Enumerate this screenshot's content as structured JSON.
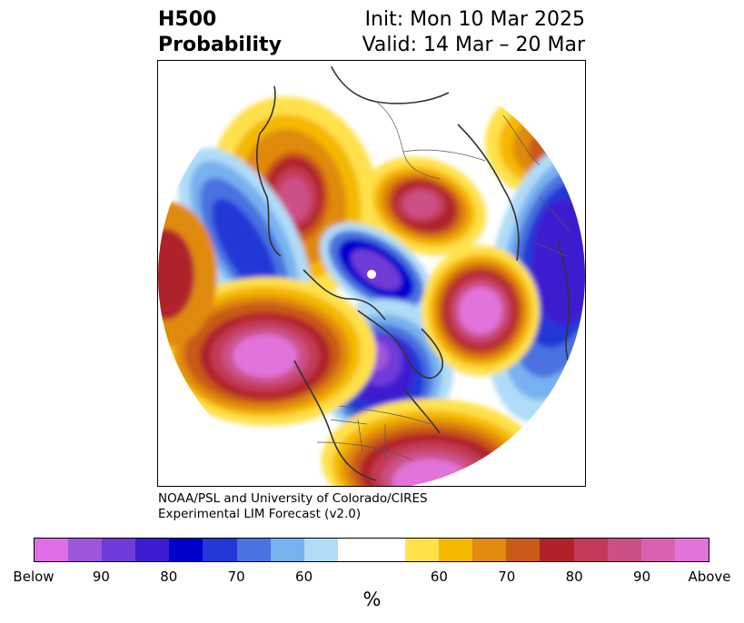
{
  "header": {
    "title_line1": "H500",
    "title_line2": "Probability",
    "init": "Init: Mon 10 Mar 2025",
    "valid": "Valid: 14 Mar – 20 Mar"
  },
  "credit": {
    "line1": "NOAA/PSL and University of Colorado/CIRES",
    "line2": "Experimental LIM Forecast (v2.0)"
  },
  "colorbar": {
    "colors": [
      "#dd6ee6",
      "#9d55dd",
      "#6f3bd9",
      "#3d1bd0",
      "#0000cc",
      "#2338d6",
      "#4a72e0",
      "#77b1ef",
      "#b0dcf7",
      "#ffffff",
      "#ffe14b",
      "#f5b800",
      "#e08a10",
      "#c95a17",
      "#b0222a",
      "#c23a55",
      "#cc4f85",
      "#d862b0",
      "#e273d8"
    ],
    "tick_labels": [
      "Below",
      "90",
      "80",
      "70",
      "60",
      "60",
      "70",
      "80",
      "90",
      "Above"
    ],
    "unit": "%"
  },
  "map": {
    "projection": "polar-stereographic-north",
    "features": [
      "coastlines",
      "country-borders",
      "state-borders",
      "north-pole-marker"
    ]
  }
}
